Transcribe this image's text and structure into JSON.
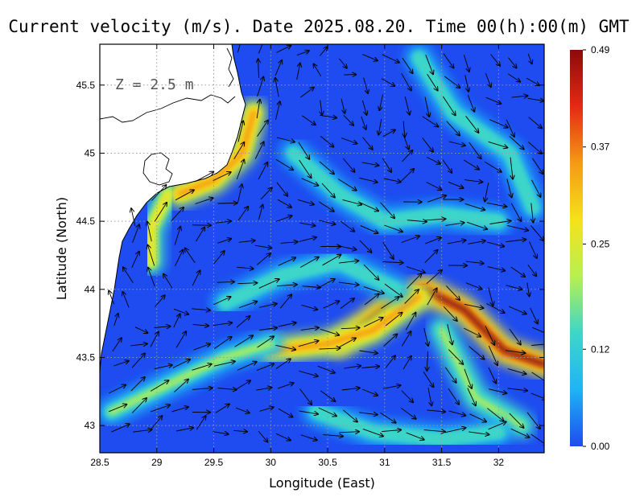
{
  "title": "Current velocity (m/s). Date 2025.08.20. Time 00(h):00(m) GMT",
  "depth_label": "Z = 2.5 m",
  "x_axis": {
    "label": "Longitude (East)",
    "range": [
      28.5,
      32.4
    ],
    "ticks": [
      "28.5",
      "29",
      "29.5",
      "30",
      "30.5",
      "31",
      "31.5",
      "32"
    ]
  },
  "y_axis": {
    "label": "Latitude (North)",
    "range": [
      42.8,
      45.8
    ],
    "ticks": [
      "43",
      "43.5",
      "44",
      "44.5",
      "45",
      "45.5"
    ]
  },
  "colorbar": {
    "ticks": [
      "0.00",
      "0.12",
      "0.25",
      "0.37",
      "0.49"
    ],
    "min": 0.0,
    "max": 0.49,
    "colors": [
      "#1e4cf0",
      "#1fb4f5",
      "#3dd6c9",
      "#b8f050",
      "#f5e21b",
      "#f59a14",
      "#e52a14",
      "#8b0a0a"
    ]
  },
  "colors": {
    "ocean": "#1e4cf0",
    "land": "#ffffff",
    "coastline": "#000000",
    "arrow": "#000000",
    "grid": "#9a9a9a"
  },
  "grid": true,
  "streams": [
    {
      "path": [
        [
          30.6,
          43.6
        ],
        [
          31.0,
          43.85
        ],
        [
          31.35,
          44.0
        ],
        [
          31.7,
          43.85
        ],
        [
          32.05,
          43.55
        ],
        [
          32.4,
          43.45
        ]
      ],
      "speed": 0.46
    },
    {
      "path": [
        [
          30.0,
          43.55
        ],
        [
          30.5,
          43.6
        ],
        [
          30.9,
          43.7
        ],
        [
          31.3,
          43.95
        ]
      ],
      "speed": 0.34
    },
    {
      "path": [
        [
          29.2,
          44.7
        ],
        [
          29.5,
          44.8
        ],
        [
          29.75,
          45.0
        ],
        [
          29.85,
          45.3
        ]
      ],
      "speed": 0.36
    },
    {
      "path": [
        [
          28.95,
          44.2
        ],
        [
          28.95,
          44.45
        ],
        [
          29.1,
          44.7
        ]
      ],
      "speed": 0.3
    },
    {
      "path": [
        [
          28.6,
          43.1
        ],
        [
          29.1,
          43.3
        ],
        [
          29.6,
          43.5
        ],
        [
          30.0,
          43.6
        ]
      ],
      "speed": 0.18
    },
    {
      "path": [
        [
          31.5,
          43.7
        ],
        [
          31.8,
          43.2
        ],
        [
          32.2,
          43.0
        ]
      ],
      "speed": 0.2
    },
    {
      "path": [
        [
          30.2,
          45.0
        ],
        [
          30.6,
          44.7
        ],
        [
          31.0,
          44.5
        ],
        [
          31.5,
          44.55
        ],
        [
          32.0,
          44.5
        ]
      ],
      "speed": 0.15
    },
    {
      "path": [
        [
          31.3,
          45.7
        ],
        [
          31.6,
          45.3
        ],
        [
          32.1,
          45.0
        ],
        [
          32.3,
          44.6
        ]
      ],
      "speed": 0.14
    },
    {
      "path": [
        [
          29.6,
          43.9
        ],
        [
          30.1,
          44.1
        ],
        [
          30.6,
          44.2
        ],
        [
          31.1,
          44.0
        ]
      ],
      "speed": 0.14
    },
    {
      "path": [
        [
          30.4,
          43.1
        ],
        [
          30.9,
          42.95
        ],
        [
          31.5,
          42.9
        ],
        [
          32.0,
          42.95
        ]
      ],
      "speed": 0.17
    }
  ]
}
